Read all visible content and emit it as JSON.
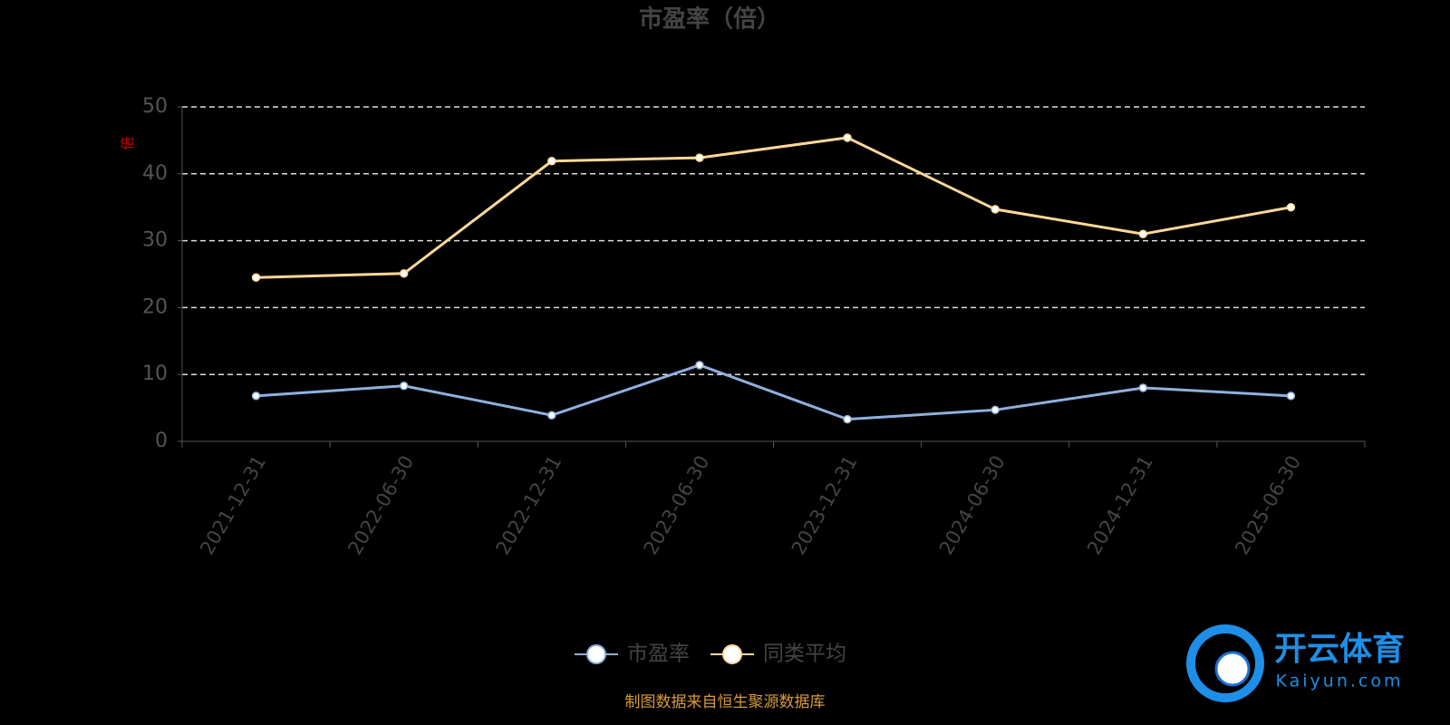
{
  "chart_data": {
    "type": "line",
    "title": "市盈率（倍）",
    "y_label": "倍",
    "categories": [
      "2021-12-31",
      "2022-06-30",
      "2022-12-31",
      "2023-06-30",
      "2023-12-31",
      "2024-06-30",
      "2024-12-31",
      "2025-06-30"
    ],
    "series": [
      {
        "name": "市盈率",
        "color": "#8fb0df",
        "values": [
          6.8,
          8.3,
          3.9,
          11.4,
          3.3,
          4.7,
          8.0,
          6.8
        ]
      },
      {
        "name": "同类平均",
        "color": "#ffd799",
        "values": [
          24.5,
          25.1,
          41.9,
          42.4,
          45.4,
          34.7,
          31.0,
          35.0
        ]
      }
    ],
    "ylim": [
      0,
      50
    ],
    "yticks": [
      0,
      10,
      20,
      30,
      40,
      50
    ],
    "grid": true,
    "source": "制图数据来自恒生聚源数据库"
  },
  "watermark": {
    "text": "开云体育",
    "subtext": "Kaiyun.com"
  }
}
